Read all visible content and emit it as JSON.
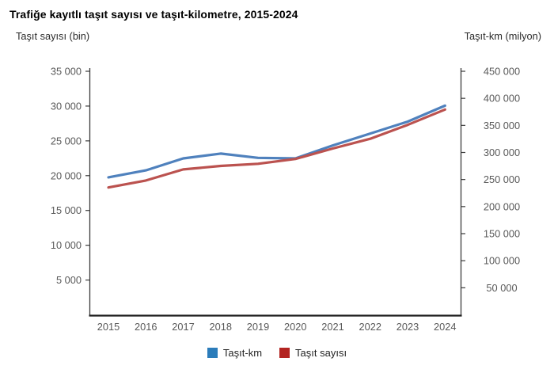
{
  "page": {
    "background": "#ffffff"
  },
  "chart_data": {
    "type": "line",
    "title": "Trafiğe kayıtlı taşıt sayısı ve taşıt-kilometre, 2015-2024",
    "categories": [
      "2015",
      "2016",
      "2017",
      "2018",
      "2019",
      "2020",
      "2021",
      "2022",
      "2023",
      "2024"
    ],
    "left_axis": {
      "label": "Taşıt sayısı (bin)",
      "min": 0,
      "max": 35000,
      "tick_values": [
        5000,
        10000,
        15000,
        20000,
        25000,
        30000,
        35000
      ],
      "tick_labels": [
        "5 000",
        "10 000",
        "15 000",
        "20 000",
        "25 000",
        "30 000",
        "35 000"
      ]
    },
    "right_axis": {
      "label": "Taşıt-km (milyon)",
      "min": 0,
      "max": 450000,
      "tick_values": [
        50000,
        100000,
        150000,
        200000,
        250000,
        300000,
        350000,
        400000,
        450000
      ],
      "tick_labels": [
        "50 000",
        "100 000",
        "150 000",
        "200 000",
        "250 000",
        "300 000",
        "350 000",
        "400 000",
        "450 000"
      ]
    },
    "series": [
      {
        "name": "Taşıt-km",
        "axis": "right",
        "line_color": "#4f81bd",
        "legend_color": "#2b7cba",
        "values": [
          254000,
          267000,
          289000,
          298000,
          290000,
          289000,
          313000,
          335000,
          357000,
          386500
        ]
      },
      {
        "name": "Taşıt sayısı",
        "axis": "left",
        "line_color": "#bb524f",
        "legend_color": "#b32421",
        "values": [
          18300,
          19300,
          20900,
          21400,
          21700,
          22400,
          23900,
          25300,
          27300,
          29500
        ]
      }
    ],
    "legend_position": "bottom-center",
    "grid": false
  }
}
